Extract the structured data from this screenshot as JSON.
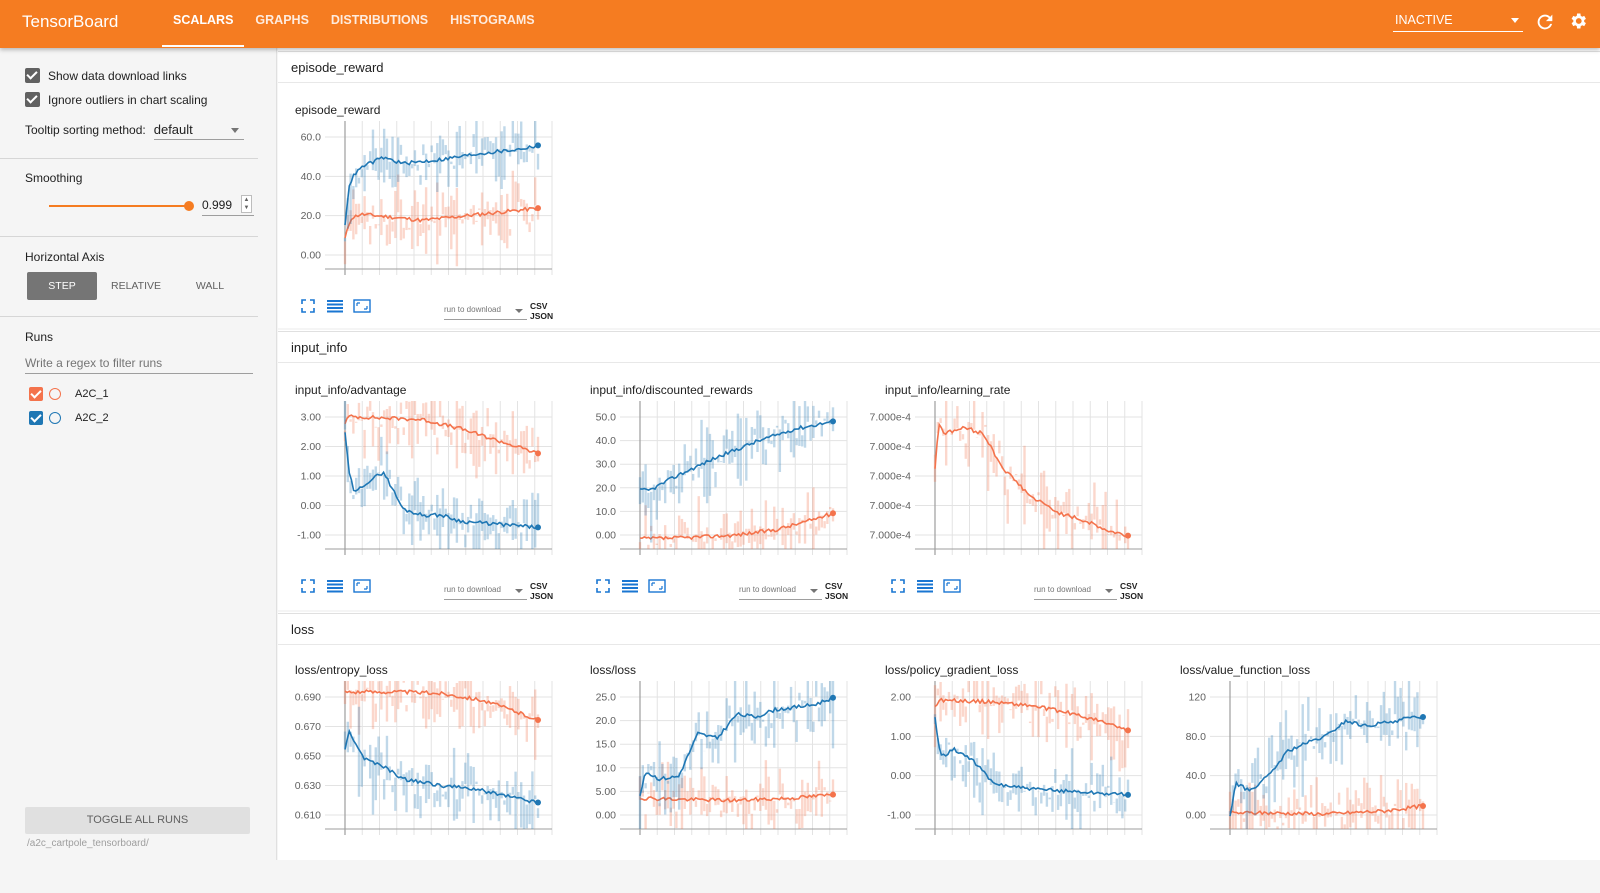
{
  "app": {
    "title": "TensorBoard"
  },
  "tabs": [
    "SCALARS",
    "GRAPHS",
    "DISTRIBUTIONS",
    "HISTOGRAMS"
  ],
  "header": {
    "status_select": "INACTIVE"
  },
  "colors": {
    "accent": "#f57c21",
    "run1": "#f4734c",
    "run2": "#1f77b4"
  },
  "sidebar": {
    "show_download_links": "Show data download links",
    "ignore_outliers": "Ignore outliers in chart scaling",
    "tooltip_label": "Tooltip sorting method:",
    "tooltip_value": "default",
    "smoothing_label": "Smoothing",
    "smoothing_value": "0.999",
    "smoothing_level": 0.999,
    "haxis_label": "Horizontal Axis",
    "haxis_options": [
      "STEP",
      "RELATIVE",
      "WALL"
    ],
    "runs_label": "Runs",
    "regex_placeholder": "Write a regex to filter runs",
    "runs": [
      "A2C_1",
      "A2C_2"
    ],
    "toggle_label": "TOGGLE ALL RUNS",
    "logdir": "/a2c_cartpole_tensorboard/"
  },
  "download": {
    "select_label": "run to download",
    "links": "CSV JSON"
  },
  "sections": [
    {
      "title": "episode_reward"
    },
    {
      "title": "input_info"
    },
    {
      "title": "loss"
    }
  ],
  "chart_data": [
    {
      "section": "episode_reward",
      "title": "episode_reward",
      "type": "line",
      "ytick_labels": [
        "60.0",
        "40.0",
        "20.0",
        "0.00"
      ],
      "ylim": [
        -3,
        70
      ],
      "series": [
        {
          "name": "A2C_1",
          "color": "#f4734c",
          "x": [
            0,
            0.03,
            0.08,
            0.2,
            0.4,
            0.6,
            0.8,
            1.0
          ],
          "values": [
            12,
            22,
            24,
            23,
            21,
            23,
            25,
            27
          ]
        },
        {
          "name": "A2C_2",
          "color": "#1f77b4",
          "x": [
            0,
            0.02,
            0.05,
            0.1,
            0.2,
            0.3,
            0.5,
            0.7,
            0.9,
            1.0
          ],
          "values": [
            18,
            38,
            44,
            48,
            52,
            49,
            51,
            54,
            56,
            58
          ]
        }
      ]
    },
    {
      "section": "input_info",
      "title": "input_info/advantage",
      "type": "line",
      "ytick_labels": [
        "3.00",
        "2.00",
        "1.00",
        "0.00",
        "-1.00"
      ],
      "ylim": [
        -1.5,
        3.3
      ],
      "series": [
        {
          "name": "A2C_1",
          "color": "#f4734c",
          "x": [
            0,
            0.02,
            0.2,
            0.4,
            0.6,
            0.8,
            1.0
          ],
          "values": [
            2.6,
            2.8,
            2.75,
            2.7,
            2.4,
            2.0,
            1.6
          ]
        },
        {
          "name": "A2C_2",
          "color": "#1f77b4",
          "x": [
            0,
            0.02,
            0.05,
            0.1,
            0.2,
            0.3,
            0.4,
            0.5,
            0.6,
            0.8,
            1.0
          ],
          "values": [
            2.3,
            1.0,
            0.3,
            0.6,
            1.0,
            -0.2,
            -0.4,
            -0.4,
            -0.6,
            -0.7,
            -0.8
          ]
        }
      ]
    },
    {
      "section": "input_info",
      "title": "input_info/discounted_rewards",
      "type": "line",
      "ytick_labels": [
        "50.0",
        "40.0",
        "30.0",
        "20.0",
        "10.0",
        "0.00"
      ],
      "ylim": [
        -2,
        56
      ],
      "series": [
        {
          "name": "A2C_1",
          "color": "#f4734c",
          "x": [
            0,
            0.2,
            0.5,
            0.7,
            0.85,
            1.0
          ],
          "values": [
            2,
            2.3,
            3.5,
            5.5,
            8.5,
            12
          ]
        },
        {
          "name": "A2C_2",
          "color": "#1f77b4",
          "x": [
            0,
            0.05,
            0.2,
            0.4,
            0.6,
            0.8,
            1.0
          ],
          "values": [
            21,
            21,
            27,
            34,
            40,
            45,
            48
          ]
        }
      ]
    },
    {
      "section": "input_info",
      "title": "input_info/learning_rate",
      "type": "line",
      "ytick_labels": [
        "7.000e-4",
        "7.000e-4",
        "7.000e-4",
        "7.000e-4",
        "7.000e-4"
      ],
      "ylim": [
        0,
        1
      ],
      "series": [
        {
          "name": "A2C_1",
          "color": "#f4734c",
          "x": [
            0,
            0.02,
            0.05,
            0.15,
            0.25,
            0.35,
            0.5,
            0.65,
            0.8,
            0.9,
            1.0
          ],
          "values": [
            0.55,
            0.85,
            0.78,
            0.82,
            0.78,
            0.55,
            0.35,
            0.24,
            0.18,
            0.12,
            0.09
          ]
        }
      ]
    },
    {
      "section": "loss",
      "title": "loss/entropy_loss",
      "type": "line",
      "ytick_labels": [
        "0.690",
        "0.670",
        "0.650",
        "0.630",
        "0.610"
      ],
      "ylim": [
        0.605,
        0.7
      ],
      "series": [
        {
          "name": "A2C_1",
          "color": "#f4734c",
          "x": [
            0,
            0.3,
            0.5,
            0.7,
            0.85,
            1.0
          ],
          "values": [
            0.693,
            0.693,
            0.692,
            0.688,
            0.682,
            0.675
          ]
        },
        {
          "name": "A2C_2",
          "color": "#1f77b4",
          "x": [
            0,
            0.02,
            0.1,
            0.2,
            0.3,
            0.5,
            0.7,
            0.85,
            1.0
          ],
          "values": [
            0.655,
            0.668,
            0.65,
            0.645,
            0.637,
            0.633,
            0.63,
            0.626,
            0.622
          ]
        }
      ]
    },
    {
      "section": "loss",
      "title": "loss/loss",
      "type": "line",
      "ytick_labels": [
        "25.0",
        "20.0",
        "15.0",
        "10.0",
        "5.00",
        "0.00"
      ],
      "ylim": [
        -2,
        29
      ],
      "series": [
        {
          "name": "A2C_1",
          "color": "#f4734c",
          "x": [
            0,
            0.2,
            0.5,
            0.8,
            1.0
          ],
          "values": [
            4.5,
            4.2,
            4.0,
            4.5,
            5.2
          ]
        },
        {
          "name": "A2C_2",
          "color": "#1f77b4",
          "x": [
            0,
            0.03,
            0.1,
            0.2,
            0.3,
            0.4,
            0.5,
            0.6,
            0.7,
            0.8,
            0.9,
            1.0
          ],
          "values": [
            5,
            10,
            8.5,
            9,
            18,
            17,
            22,
            21.5,
            23,
            23.5,
            24,
            25.5
          ]
        }
      ]
    },
    {
      "section": "loss",
      "title": "loss/policy_gradient_loss",
      "type": "line",
      "ytick_labels": [
        "2.00",
        "1.00",
        "0.00",
        "-1.00"
      ],
      "ylim": [
        -1.5,
        2.4
      ],
      "series": [
        {
          "name": "A2C_1",
          "color": "#f4734c",
          "x": [
            0,
            0.02,
            0.3,
            0.5,
            0.7,
            0.85,
            1.0
          ],
          "values": [
            1.7,
            1.9,
            1.85,
            1.75,
            1.55,
            1.35,
            1.1
          ]
        },
        {
          "name": "A2C_2",
          "color": "#1f77b4",
          "x": [
            0,
            0.03,
            0.1,
            0.2,
            0.3,
            0.5,
            0.7,
            0.85,
            1.0
          ],
          "values": [
            1.4,
            0.4,
            0.6,
            0.3,
            -0.3,
            -0.45,
            -0.5,
            -0.55,
            -0.6
          ]
        }
      ]
    },
    {
      "section": "loss",
      "title": "loss/value_function_loss",
      "type": "line",
      "ytick_labels": [
        "120",
        "80.0",
        "40.0",
        "0.00"
      ],
      "ylim": [
        -8,
        140
      ],
      "series": [
        {
          "name": "A2C_1",
          "color": "#f4734c",
          "x": [
            0,
            0.2,
            0.5,
            0.8,
            1.0
          ],
          "values": [
            8,
            8,
            7,
            10,
            15
          ]
        },
        {
          "name": "A2C_2",
          "color": "#1f77b4",
          "x": [
            0,
            0.03,
            0.1,
            0.2,
            0.3,
            0.4,
            0.5,
            0.6,
            0.7,
            0.8,
            0.9,
            1.0
          ],
          "values": [
            5,
            38,
            30,
            45,
            70,
            78,
            85,
            100,
            95,
            98,
            102,
            104
          ]
        }
      ]
    }
  ]
}
